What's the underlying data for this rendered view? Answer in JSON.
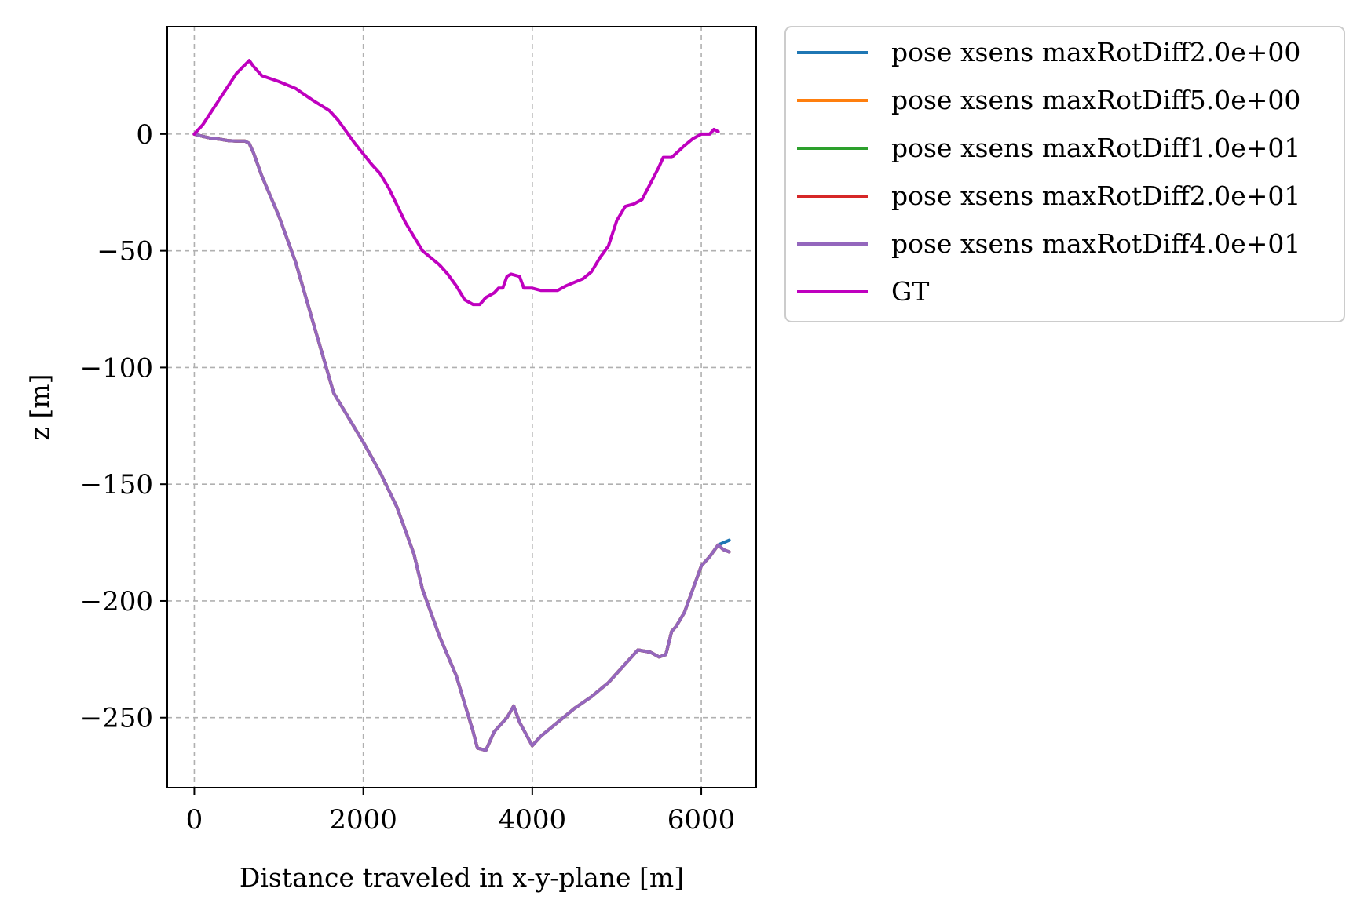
{
  "chart_data": {
    "type": "line",
    "xlabel": "Distance traveled in x-y-plane [m]",
    "ylabel": "z [m]",
    "xlim": [
      -320,
      6650
    ],
    "ylim": [
      -280,
      46
    ],
    "xticks": [
      0,
      2000,
      4000,
      6000
    ],
    "xtick_labels": [
      "0",
      "2000",
      "4000",
      "6000"
    ],
    "yticks": [
      0,
      -50,
      -100,
      -150,
      -200,
      -250
    ],
    "ytick_labels": [
      "0",
      "−50",
      "−100",
      "−150",
      "−200",
      "−250"
    ],
    "grid": true,
    "legend_position": "outside-upper-right",
    "series": [
      {
        "name": "pose xsens maxRotDiff2.0e+00",
        "color": "#1f77b4",
        "points": [
          [
            0,
            0
          ],
          [
            100,
            -1
          ],
          [
            200,
            -1.8
          ],
          [
            300,
            -2.2
          ],
          [
            400,
            -2.8
          ],
          [
            500,
            -3
          ],
          [
            600,
            -3
          ],
          [
            650,
            -4
          ],
          [
            700,
            -8
          ],
          [
            800,
            -18
          ],
          [
            1000,
            -35
          ],
          [
            1200,
            -55
          ],
          [
            1400,
            -80
          ],
          [
            1650,
            -111
          ],
          [
            1800,
            -120
          ],
          [
            2000,
            -132
          ],
          [
            2200,
            -145
          ],
          [
            2400,
            -160
          ],
          [
            2600,
            -180
          ],
          [
            2700,
            -195
          ],
          [
            2900,
            -215
          ],
          [
            3100,
            -232
          ],
          [
            3300,
            -256
          ],
          [
            3350,
            -263
          ],
          [
            3450,
            -264
          ],
          [
            3550,
            -256
          ],
          [
            3700,
            -250
          ],
          [
            3780,
            -245
          ],
          [
            3850,
            -252
          ],
          [
            4000,
            -262
          ],
          [
            4100,
            -258
          ],
          [
            4300,
            -252
          ],
          [
            4500,
            -246
          ],
          [
            4700,
            -241
          ],
          [
            4900,
            -235
          ],
          [
            5100,
            -227
          ],
          [
            5250,
            -221
          ],
          [
            5400,
            -222
          ],
          [
            5500,
            -224
          ],
          [
            5580,
            -223
          ],
          [
            5650,
            -213
          ],
          [
            5700,
            -211
          ],
          [
            5800,
            -205
          ],
          [
            5900,
            -195
          ],
          [
            6000,
            -185
          ],
          [
            6100,
            -181
          ],
          [
            6200,
            -176
          ],
          [
            6330,
            -174
          ]
        ]
      },
      {
        "name": "pose xsens maxRotDiff5.0e+00",
        "color": "#ff7f0e",
        "points": [
          [
            0,
            0
          ],
          [
            100,
            -1
          ],
          [
            200,
            -1.8
          ],
          [
            300,
            -2.2
          ],
          [
            400,
            -2.8
          ],
          [
            500,
            -3
          ],
          [
            600,
            -3
          ],
          [
            650,
            -4
          ],
          [
            700,
            -8
          ],
          [
            800,
            -18
          ],
          [
            1000,
            -35
          ],
          [
            1200,
            -55
          ],
          [
            1400,
            -80
          ],
          [
            1650,
            -111
          ],
          [
            1800,
            -120
          ],
          [
            2000,
            -132
          ],
          [
            2200,
            -145
          ],
          [
            2400,
            -160
          ],
          [
            2600,
            -180
          ],
          [
            2700,
            -195
          ],
          [
            2900,
            -215
          ],
          [
            3100,
            -232
          ],
          [
            3300,
            -256
          ],
          [
            3350,
            -263
          ],
          [
            3450,
            -264
          ],
          [
            3550,
            -256
          ],
          [
            3700,
            -250
          ],
          [
            3780,
            -245
          ],
          [
            3850,
            -252
          ],
          [
            4000,
            -262
          ],
          [
            4100,
            -258
          ],
          [
            4300,
            -252
          ],
          [
            4500,
            -246
          ],
          [
            4700,
            -241
          ],
          [
            4900,
            -235
          ],
          [
            5100,
            -227
          ],
          [
            5250,
            -221
          ],
          [
            5400,
            -222
          ],
          [
            5500,
            -224
          ],
          [
            5580,
            -223
          ],
          [
            5650,
            -213
          ],
          [
            5700,
            -211
          ],
          [
            5800,
            -205
          ],
          [
            5900,
            -195
          ],
          [
            6000,
            -185
          ],
          [
            6100,
            -181
          ],
          [
            6200,
            -176
          ],
          [
            6260,
            -178
          ],
          [
            6330,
            -179
          ]
        ]
      },
      {
        "name": "pose xsens maxRotDiff1.0e+01",
        "color": "#2ca02c",
        "points": [
          [
            0,
            0
          ],
          [
            100,
            -1
          ],
          [
            200,
            -1.8
          ],
          [
            300,
            -2.2
          ],
          [
            400,
            -2.8
          ],
          [
            500,
            -3
          ],
          [
            600,
            -3
          ],
          [
            650,
            -4
          ],
          [
            700,
            -8
          ],
          [
            800,
            -18
          ],
          [
            1000,
            -35
          ],
          [
            1200,
            -55
          ],
          [
            1400,
            -80
          ],
          [
            1650,
            -111
          ],
          [
            1800,
            -120
          ],
          [
            2000,
            -132
          ],
          [
            2200,
            -145
          ],
          [
            2400,
            -160
          ],
          [
            2600,
            -180
          ],
          [
            2700,
            -195
          ],
          [
            2900,
            -215
          ],
          [
            3100,
            -232
          ],
          [
            3300,
            -256
          ],
          [
            3350,
            -263
          ],
          [
            3450,
            -264
          ],
          [
            3550,
            -256
          ],
          [
            3700,
            -250
          ],
          [
            3780,
            -245
          ],
          [
            3850,
            -252
          ],
          [
            4000,
            -262
          ],
          [
            4100,
            -258
          ],
          [
            4300,
            -252
          ],
          [
            4500,
            -246
          ],
          [
            4700,
            -241
          ],
          [
            4900,
            -235
          ],
          [
            5100,
            -227
          ],
          [
            5250,
            -221
          ],
          [
            5400,
            -222
          ],
          [
            5500,
            -224
          ],
          [
            5580,
            -223
          ],
          [
            5650,
            -213
          ],
          [
            5700,
            -211
          ],
          [
            5800,
            -205
          ],
          [
            5900,
            -195
          ],
          [
            6000,
            -185
          ],
          [
            6100,
            -181
          ],
          [
            6200,
            -176
          ],
          [
            6260,
            -178
          ],
          [
            6330,
            -179
          ]
        ]
      },
      {
        "name": "pose xsens maxRotDiff2.0e+01",
        "color": "#d62728",
        "points": [
          [
            0,
            0
          ],
          [
            100,
            -1
          ],
          [
            200,
            -1.8
          ],
          [
            300,
            -2.2
          ],
          [
            400,
            -2.8
          ],
          [
            500,
            -3
          ],
          [
            600,
            -3
          ],
          [
            650,
            -4
          ],
          [
            700,
            -8
          ],
          [
            800,
            -18
          ],
          [
            1000,
            -35
          ],
          [
            1200,
            -55
          ],
          [
            1400,
            -80
          ],
          [
            1650,
            -111
          ],
          [
            1800,
            -120
          ],
          [
            2000,
            -132
          ],
          [
            2200,
            -145
          ],
          [
            2400,
            -160
          ],
          [
            2600,
            -180
          ],
          [
            2700,
            -195
          ],
          [
            2900,
            -215
          ],
          [
            3100,
            -232
          ],
          [
            3300,
            -256
          ],
          [
            3350,
            -263
          ],
          [
            3450,
            -264
          ],
          [
            3550,
            -256
          ],
          [
            3700,
            -250
          ],
          [
            3780,
            -245
          ],
          [
            3850,
            -252
          ],
          [
            4000,
            -262
          ],
          [
            4100,
            -258
          ],
          [
            4300,
            -252
          ],
          [
            4500,
            -246
          ],
          [
            4700,
            -241
          ],
          [
            4900,
            -235
          ],
          [
            5100,
            -227
          ],
          [
            5250,
            -221
          ],
          [
            5400,
            -222
          ],
          [
            5500,
            -224
          ],
          [
            5580,
            -223
          ],
          [
            5650,
            -213
          ],
          [
            5700,
            -211
          ],
          [
            5800,
            -205
          ],
          [
            5900,
            -195
          ],
          [
            6000,
            -185
          ],
          [
            6100,
            -181
          ],
          [
            6200,
            -176
          ],
          [
            6260,
            -178
          ],
          [
            6330,
            -179
          ]
        ]
      },
      {
        "name": "pose xsens maxRotDiff4.0e+01",
        "color": "#9467bd",
        "points": [
          [
            0,
            0
          ],
          [
            100,
            -1
          ],
          [
            200,
            -1.8
          ],
          [
            300,
            -2.2
          ],
          [
            400,
            -2.8
          ],
          [
            500,
            -3
          ],
          [
            600,
            -3
          ],
          [
            650,
            -4
          ],
          [
            700,
            -8
          ],
          [
            800,
            -18
          ],
          [
            1000,
            -35
          ],
          [
            1200,
            -55
          ],
          [
            1400,
            -80
          ],
          [
            1650,
            -111
          ],
          [
            1800,
            -120
          ],
          [
            2000,
            -132
          ],
          [
            2200,
            -145
          ],
          [
            2400,
            -160
          ],
          [
            2600,
            -180
          ],
          [
            2700,
            -195
          ],
          [
            2900,
            -215
          ],
          [
            3100,
            -232
          ],
          [
            3300,
            -256
          ],
          [
            3350,
            -263
          ],
          [
            3450,
            -264
          ],
          [
            3550,
            -256
          ],
          [
            3700,
            -250
          ],
          [
            3780,
            -245
          ],
          [
            3850,
            -252
          ],
          [
            4000,
            -262
          ],
          [
            4100,
            -258
          ],
          [
            4300,
            -252
          ],
          [
            4500,
            -246
          ],
          [
            4700,
            -241
          ],
          [
            4900,
            -235
          ],
          [
            5100,
            -227
          ],
          [
            5250,
            -221
          ],
          [
            5400,
            -222
          ],
          [
            5500,
            -224
          ],
          [
            5580,
            -223
          ],
          [
            5650,
            -213
          ],
          [
            5700,
            -211
          ],
          [
            5800,
            -205
          ],
          [
            5900,
            -195
          ],
          [
            6000,
            -185
          ],
          [
            6100,
            -181
          ],
          [
            6200,
            -176
          ],
          [
            6260,
            -178
          ],
          [
            6330,
            -179
          ]
        ]
      },
      {
        "name": "GT",
        "color": "#bf00bf",
        "points": [
          [
            0,
            0
          ],
          [
            100,
            4
          ],
          [
            300,
            15
          ],
          [
            500,
            26
          ],
          [
            650,
            31.5
          ],
          [
            700,
            29
          ],
          [
            800,
            25
          ],
          [
            1000,
            22.5
          ],
          [
            1200,
            19.5
          ],
          [
            1300,
            17
          ],
          [
            1400,
            14.5
          ],
          [
            1600,
            10
          ],
          [
            1700,
            6
          ],
          [
            1900,
            -4
          ],
          [
            2100,
            -13
          ],
          [
            2200,
            -17
          ],
          [
            2300,
            -23
          ],
          [
            2500,
            -38
          ],
          [
            2700,
            -50
          ],
          [
            2900,
            -56
          ],
          [
            3000,
            -60
          ],
          [
            3100,
            -65
          ],
          [
            3200,
            -71
          ],
          [
            3300,
            -73
          ],
          [
            3380,
            -73
          ],
          [
            3450,
            -70
          ],
          [
            3550,
            -68
          ],
          [
            3600,
            -66
          ],
          [
            3650,
            -66
          ],
          [
            3700,
            -61
          ],
          [
            3750,
            -60
          ],
          [
            3850,
            -61
          ],
          [
            3900,
            -66
          ],
          [
            4000,
            -66
          ],
          [
            4100,
            -67
          ],
          [
            4200,
            -67
          ],
          [
            4300,
            -67
          ],
          [
            4400,
            -65
          ],
          [
            4600,
            -62
          ],
          [
            4700,
            -59
          ],
          [
            4800,
            -53
          ],
          [
            4900,
            -48
          ],
          [
            5000,
            -37
          ],
          [
            5100,
            -31
          ],
          [
            5200,
            -30
          ],
          [
            5300,
            -28
          ],
          [
            5400,
            -21
          ],
          [
            5500,
            -14
          ],
          [
            5550,
            -10
          ],
          [
            5650,
            -10
          ],
          [
            5800,
            -5
          ],
          [
            5900,
            -2
          ],
          [
            6000,
            0
          ],
          [
            6100,
            0
          ],
          [
            6150,
            2
          ],
          [
            6200,
            1
          ]
        ]
      }
    ]
  }
}
